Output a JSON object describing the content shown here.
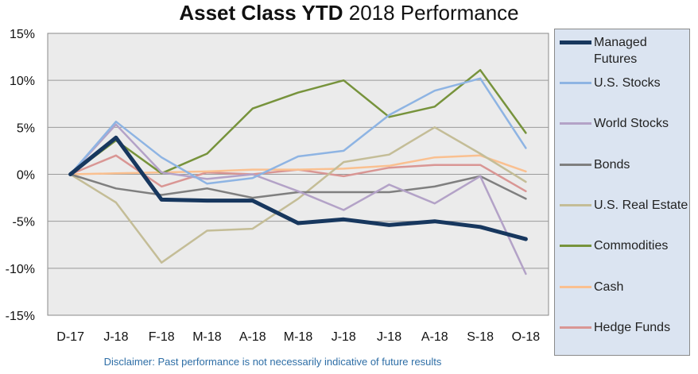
{
  "chart_data": {
    "type": "line",
    "title": "Asset Class YTD 2018 Performance",
    "title_bold": "Asset Class YTD",
    "title_rest": " 2018 Performance",
    "categories": [
      "D-17",
      "J-18",
      "F-18",
      "M-18",
      "A-18",
      "M-18",
      "J-18",
      "J-18",
      "A-18",
      "S-18",
      "O-18"
    ],
    "ylim": [
      -15,
      15
    ],
    "yticks": [
      15,
      10,
      5,
      0,
      -5,
      -10,
      -15
    ],
    "ytick_labels": [
      "15%",
      "10%",
      "5%",
      "0%",
      "-5%",
      "-10%",
      "-15%"
    ],
    "grid": "horizontal",
    "legend_position": "right",
    "series": [
      {
        "name": "Managed Futures",
        "color": "#17375e",
        "values": [
          0,
          3.9,
          -2.7,
          -2.8,
          -2.8,
          -5.2,
          -4.8,
          -5.4,
          -5.0,
          -5.6,
          -6.9
        ]
      },
      {
        "name": "U.S. Stocks",
        "color": "#8eb4e3",
        "values": [
          0,
          5.6,
          1.8,
          -1.0,
          -0.4,
          1.9,
          2.5,
          6.3,
          8.9,
          10.2,
          2.8
        ]
      },
      {
        "name": "World Stocks",
        "color": "#b3a2c7",
        "values": [
          0,
          5.3,
          0.2,
          -0.5,
          0.0,
          -1.8,
          -3.8,
          -1.1,
          -3.1,
          -0.2,
          -10.6
        ]
      },
      {
        "name": "Bonds",
        "color": "#7f7f7f",
        "values": [
          0,
          -1.5,
          -2.2,
          -1.5,
          -2.5,
          -1.9,
          -1.9,
          -1.9,
          -1.3,
          -0.2,
          -2.6
        ]
      },
      {
        "name": "U.S. Real Estate",
        "color": "#c4bd97",
        "values": [
          0,
          -3.0,
          -9.4,
          -6.0,
          -5.8,
          -2.6,
          1.3,
          2.1,
          5.0,
          2.2,
          -0.8
        ]
      },
      {
        "name": "Commodities",
        "color": "#77933c",
        "values": [
          0,
          3.6,
          0.1,
          2.2,
          7.0,
          8.7,
          10.0,
          6.1,
          7.2,
          11.1,
          4.4
        ]
      },
      {
        "name": "Cash",
        "color": "#fac090",
        "values": [
          0,
          0.1,
          0.2,
          0.3,
          0.5,
          0.5,
          0.6,
          0.9,
          1.8,
          2.0,
          0.3
        ]
      },
      {
        "name": "Hedge Funds",
        "color": "#d99694",
        "values": [
          0,
          2.0,
          -1.3,
          0.2,
          0.0,
          0.5,
          -0.2,
          0.7,
          1.0,
          1.0,
          -1.8
        ]
      }
    ]
  },
  "disclaimer": "Disclaimer: Past performance is not necessarily indicative of future results",
  "colors": {
    "plot_background": "#ebebeb",
    "legend_background": "#dbe4f1",
    "gridline": "#9a9a9a",
    "disclaimer_text": "#2e6ea6"
  }
}
